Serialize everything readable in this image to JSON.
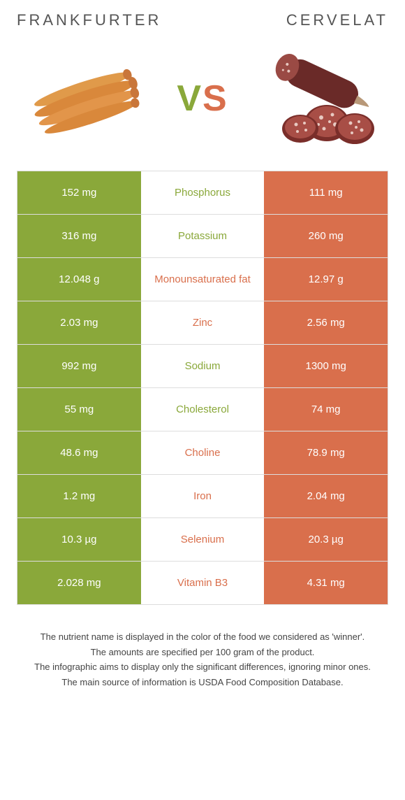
{
  "comparison": {
    "left_name": "Frankfurter",
    "right_name": "Cervelat",
    "colors": {
      "left": "#8aa83a",
      "right": "#d96f4c",
      "row_border": "#dddddd",
      "background": "#ffffff",
      "title_text": "#555555"
    },
    "fonts": {
      "title_size": 22,
      "title_letter_spacing": 4,
      "cell_size": 15,
      "footer_size": 13,
      "vs_size": 52
    },
    "rows": [
      {
        "label": "Phosphorus",
        "left": "152 mg",
        "right": "111 mg",
        "winner": "left"
      },
      {
        "label": "Potassium",
        "left": "316 mg",
        "right": "260 mg",
        "winner": "left"
      },
      {
        "label": "Monounsaturated fat",
        "left": "12.048 g",
        "right": "12.97 g",
        "winner": "right"
      },
      {
        "label": "Zinc",
        "left": "2.03 mg",
        "right": "2.56 mg",
        "winner": "right"
      },
      {
        "label": "Sodium",
        "left": "992 mg",
        "right": "1300 mg",
        "winner": "left"
      },
      {
        "label": "Cholesterol",
        "left": "55 mg",
        "right": "74 mg",
        "winner": "left"
      },
      {
        "label": "Choline",
        "left": "48.6 mg",
        "right": "78.9 mg",
        "winner": "right"
      },
      {
        "label": "Iron",
        "left": "1.2 mg",
        "right": "2.04 mg",
        "winner": "right"
      },
      {
        "label": "Selenium",
        "left": "10.3 µg",
        "right": "20.3 µg",
        "winner": "right"
      },
      {
        "label": "Vitamin B3",
        "left": "2.028 mg",
        "right": "4.31 mg",
        "winner": "right"
      }
    ]
  },
  "footer": {
    "line1": "The nutrient name is displayed in the color of the food we considered as 'winner'.",
    "line2": "The amounts are specified per 100 gram of the product.",
    "line3": "The infographic aims to display only the significant differences, ignoring minor ones.",
    "line4": "The main source of information is USDA Food Composition Database."
  },
  "vs_label": {
    "v": "V",
    "s": "S"
  }
}
